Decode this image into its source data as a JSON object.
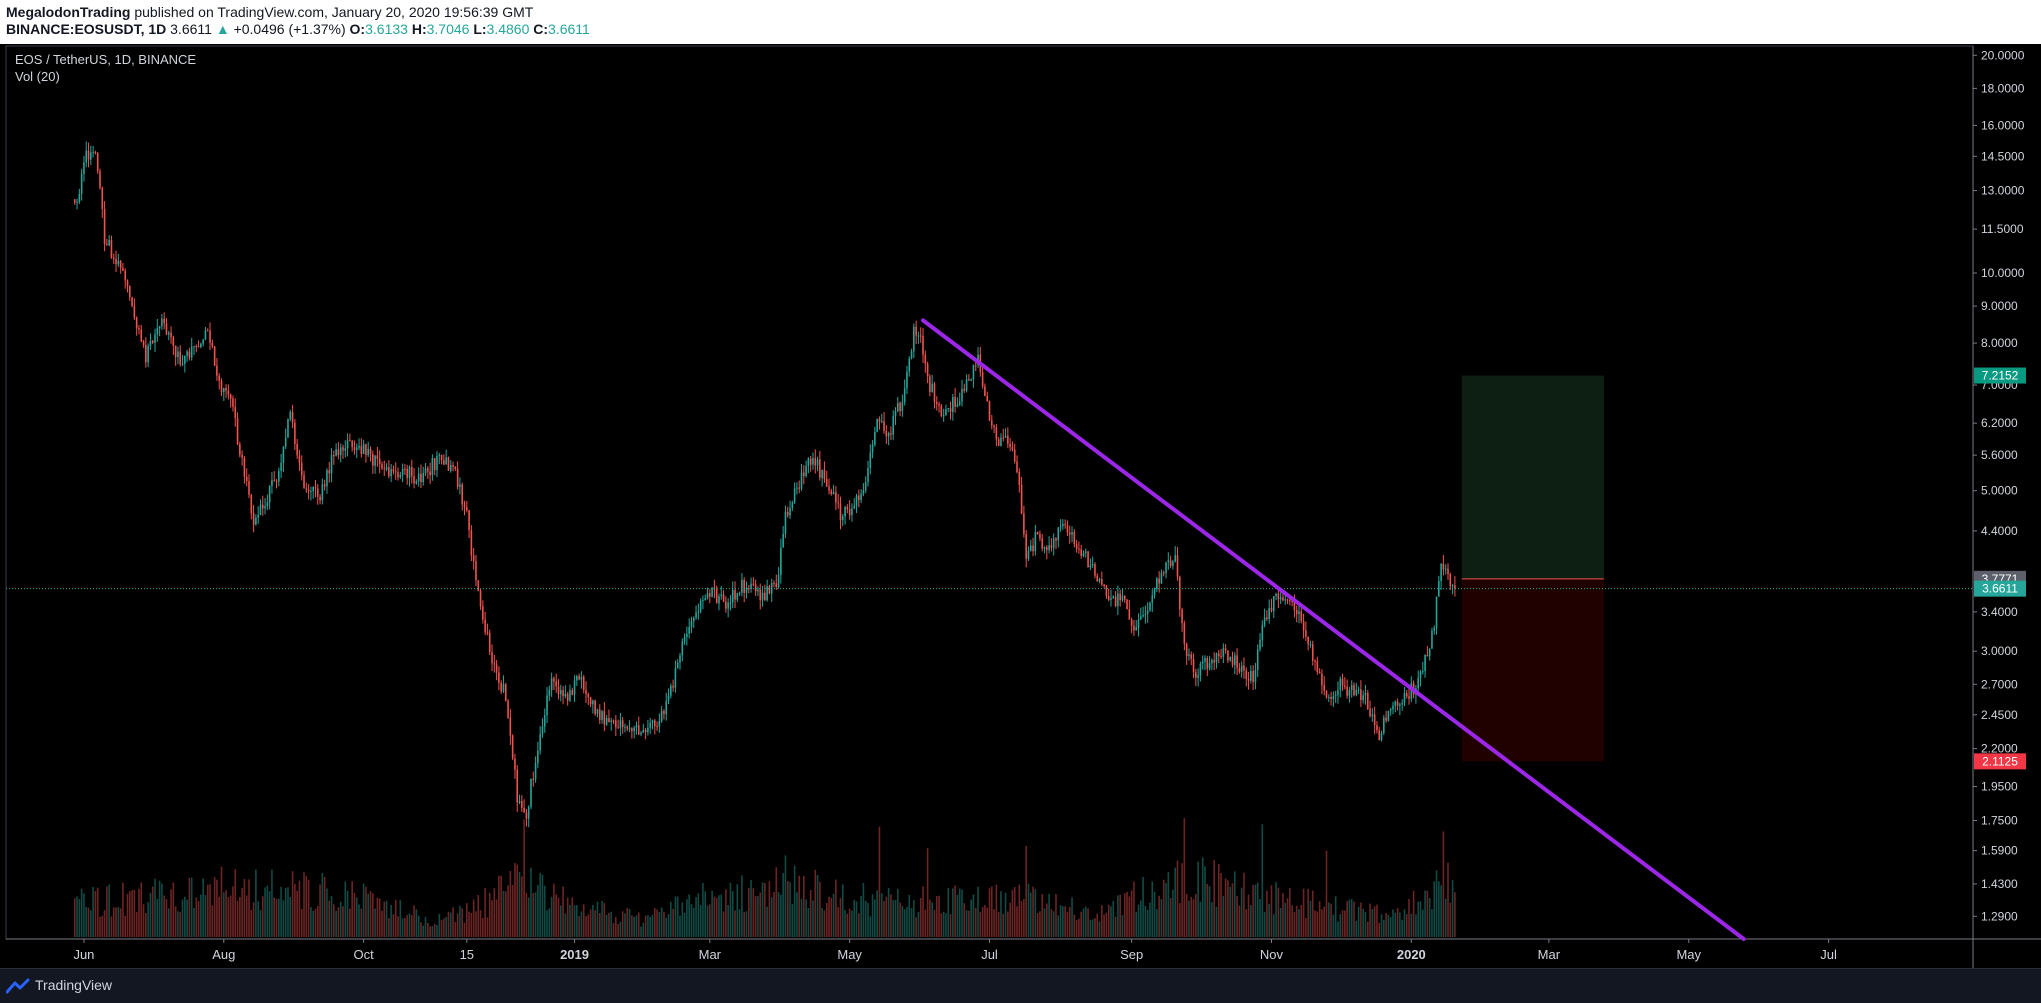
{
  "header": {
    "author": "MegalodonTrading",
    "published_text": "published on TradingView.com, January 20, 2020 19:56:39 GMT",
    "symbol": "BINANCE:EOSUSDT, 1D",
    "last": "3.6611",
    "change": "+0.0496 (+1.37%)",
    "open_label": "O:",
    "open": "3.6133",
    "high_label": "H:",
    "high": "3.7046",
    "low_label": "L:",
    "low": "3.4860",
    "close_label": "C:",
    "close": "3.6611"
  },
  "footer": {
    "brand": "TradingView"
  },
  "colors": {
    "background": "#000000",
    "up": "#26a69a",
    "down": "#ef5350",
    "trendline": "#9c27e8",
    "target_zone": "#0d1f12",
    "stop_zone": "#210000",
    "target_badge": "#089981",
    "stop_badge": "#f23645"
  },
  "chart_data": {
    "type": "candlestick",
    "legend_title": "EOS / TetherUS, 1D, BINANCE",
    "indicator": "Vol (20)",
    "y_scale": "log",
    "ylim": [
      1.2,
      20.6
    ],
    "y_ticks": [
      "20.0000",
      "18.0000",
      "16.0000",
      "14.5000",
      "13.0000",
      "11.5000",
      "10.0000",
      "9.0000",
      "8.0000",
      "7.0000",
      "6.2000",
      "5.6000",
      "5.0000",
      "4.4000",
      "3.4000",
      "3.0000",
      "2.7000",
      "2.4500",
      "2.2000",
      "1.9500",
      "1.7500",
      "1.5900",
      "1.4300",
      "1.2900"
    ],
    "x_range": [
      "2018-04-28",
      "2020-09-02"
    ],
    "x_ticks": [
      {
        "label": "Jun",
        "date": "2018-06-01"
      },
      {
        "label": "Aug",
        "date": "2018-08-01"
      },
      {
        "label": "Oct",
        "date": "2018-10-01"
      },
      {
        "label": "15",
        "date": "2018-11-15"
      },
      {
        "label": "2019",
        "date": "2019-01-01"
      },
      {
        "label": "Mar",
        "date": "2019-03-01"
      },
      {
        "label": "May",
        "date": "2019-05-01"
      },
      {
        "label": "Jul",
        "date": "2019-07-01"
      },
      {
        "label": "Sep",
        "date": "2019-09-01"
      },
      {
        "label": "Nov",
        "date": "2019-11-01"
      },
      {
        "label": "2020",
        "date": "2020-01-01"
      },
      {
        "label": "Mar",
        "date": "2020-03-01"
      },
      {
        "label": "May",
        "date": "2020-05-01"
      },
      {
        "label": "Jul",
        "date": "2020-07-01"
      }
    ],
    "price_path": [
      {
        "date": "2018-05-28",
        "price": 12.3
      },
      {
        "date": "2018-06-02",
        "price": 14.5
      },
      {
        "date": "2018-06-06",
        "price": 15.0
      },
      {
        "date": "2018-06-10",
        "price": 11.2
      },
      {
        "date": "2018-06-14",
        "price": 10.5
      },
      {
        "date": "2018-06-20",
        "price": 9.8
      },
      {
        "date": "2018-06-25",
        "price": 8.2
      },
      {
        "date": "2018-06-28",
        "price": 7.6
      },
      {
        "date": "2018-07-03",
        "price": 8.6
      },
      {
        "date": "2018-07-08",
        "price": 8.2
      },
      {
        "date": "2018-07-14",
        "price": 7.5
      },
      {
        "date": "2018-07-20",
        "price": 8.0
      },
      {
        "date": "2018-07-25",
        "price": 8.4
      },
      {
        "date": "2018-07-30",
        "price": 7.1
      },
      {
        "date": "2018-08-05",
        "price": 6.5
      },
      {
        "date": "2018-08-10",
        "price": 5.2
      },
      {
        "date": "2018-08-14",
        "price": 4.6
      },
      {
        "date": "2018-08-20",
        "price": 4.9
      },
      {
        "date": "2018-08-25",
        "price": 5.3
      },
      {
        "date": "2018-08-30",
        "price": 6.4
      },
      {
        "date": "2018-09-05",
        "price": 5.1
      },
      {
        "date": "2018-09-12",
        "price": 4.9
      },
      {
        "date": "2018-09-18",
        "price": 5.6
      },
      {
        "date": "2018-09-24",
        "price": 5.9
      },
      {
        "date": "2018-10-02",
        "price": 5.7
      },
      {
        "date": "2018-10-10",
        "price": 5.3
      },
      {
        "date": "2018-10-18",
        "price": 5.3
      },
      {
        "date": "2018-10-26",
        "price": 5.2
      },
      {
        "date": "2018-11-04",
        "price": 5.6
      },
      {
        "date": "2018-11-10",
        "price": 5.3
      },
      {
        "date": "2018-11-15",
        "price": 4.6
      },
      {
        "date": "2018-11-20",
        "price": 3.6
      },
      {
        "date": "2018-11-26",
        "price": 2.9
      },
      {
        "date": "2018-12-02",
        "price": 2.6
      },
      {
        "date": "2018-12-07",
        "price": 1.9
      },
      {
        "date": "2018-12-11",
        "price": 1.8
      },
      {
        "date": "2018-12-16",
        "price": 2.2
      },
      {
        "date": "2018-12-21",
        "price": 2.7
      },
      {
        "date": "2018-12-28",
        "price": 2.6
      },
      {
        "date": "2019-01-03",
        "price": 2.75
      },
      {
        "date": "2019-01-10",
        "price": 2.5
      },
      {
        "date": "2019-01-17",
        "price": 2.35
      },
      {
        "date": "2019-01-24",
        "price": 2.4
      },
      {
        "date": "2019-02-01",
        "price": 2.3
      },
      {
        "date": "2019-02-07",
        "price": 2.4
      },
      {
        "date": "2019-02-14",
        "price": 2.8
      },
      {
        "date": "2019-02-20",
        "price": 3.3
      },
      {
        "date": "2019-02-25",
        "price": 3.5
      },
      {
        "date": "2019-03-02",
        "price": 3.6
      },
      {
        "date": "2019-03-08",
        "price": 3.5
      },
      {
        "date": "2019-03-15",
        "price": 3.7
      },
      {
        "date": "2019-03-22",
        "price": 3.6
      },
      {
        "date": "2019-03-30",
        "price": 3.65
      },
      {
        "date": "2019-04-03",
        "price": 4.6
      },
      {
        "date": "2019-04-10",
        "price": 5.2
      },
      {
        "date": "2019-04-15",
        "price": 5.6
      },
      {
        "date": "2019-04-22",
        "price": 5.0
      },
      {
        "date": "2019-04-28",
        "price": 4.6
      },
      {
        "date": "2019-05-03",
        "price": 4.8
      },
      {
        "date": "2019-05-08",
        "price": 5.2
      },
      {
        "date": "2019-05-13",
        "price": 6.2
      },
      {
        "date": "2019-05-18",
        "price": 6.0
      },
      {
        "date": "2019-05-24",
        "price": 6.7
      },
      {
        "date": "2019-05-29",
        "price": 8.3
      },
      {
        "date": "2019-06-01",
        "price": 8.0
      },
      {
        "date": "2019-06-05",
        "price": 7.0
      },
      {
        "date": "2019-06-10",
        "price": 6.4
      },
      {
        "date": "2019-06-15",
        "price": 6.6
      },
      {
        "date": "2019-06-21",
        "price": 7.0
      },
      {
        "date": "2019-06-26",
        "price": 7.6
      },
      {
        "date": "2019-06-30",
        "price": 6.5
      },
      {
        "date": "2019-07-05",
        "price": 5.9
      },
      {
        "date": "2019-07-10",
        "price": 5.8
      },
      {
        "date": "2019-07-14",
        "price": 5.1
      },
      {
        "date": "2019-07-17",
        "price": 4.0
      },
      {
        "date": "2019-07-21",
        "price": 4.3
      },
      {
        "date": "2019-07-27",
        "price": 4.2
      },
      {
        "date": "2019-08-03",
        "price": 4.5
      },
      {
        "date": "2019-08-08",
        "price": 4.2
      },
      {
        "date": "2019-08-15",
        "price": 3.9
      },
      {
        "date": "2019-08-22",
        "price": 3.6
      },
      {
        "date": "2019-08-28",
        "price": 3.5
      },
      {
        "date": "2019-09-03",
        "price": 3.2
      },
      {
        "date": "2019-09-10",
        "price": 3.6
      },
      {
        "date": "2019-09-16",
        "price": 3.9
      },
      {
        "date": "2019-09-20",
        "price": 4.0
      },
      {
        "date": "2019-09-24",
        "price": 3.0
      },
      {
        "date": "2019-09-29",
        "price": 2.8
      },
      {
        "date": "2019-10-06",
        "price": 2.95
      },
      {
        "date": "2019-10-12",
        "price": 3.0
      },
      {
        "date": "2019-10-18",
        "price": 2.85
      },
      {
        "date": "2019-10-24",
        "price": 2.75
      },
      {
        "date": "2019-10-28",
        "price": 3.3
      },
      {
        "date": "2019-11-04",
        "price": 3.6
      },
      {
        "date": "2019-11-09",
        "price": 3.5
      },
      {
        "date": "2019-11-14",
        "price": 3.3
      },
      {
        "date": "2019-11-20",
        "price": 2.9
      },
      {
        "date": "2019-11-25",
        "price": 2.55
      },
      {
        "date": "2019-11-30",
        "price": 2.7
      },
      {
        "date": "2019-12-06",
        "price": 2.65
      },
      {
        "date": "2019-12-12",
        "price": 2.6
      },
      {
        "date": "2019-12-18",
        "price": 2.3
      },
      {
        "date": "2019-12-22",
        "price": 2.5
      },
      {
        "date": "2019-12-28",
        "price": 2.55
      },
      {
        "date": "2020-01-03",
        "price": 2.7
      },
      {
        "date": "2020-01-08",
        "price": 3.0
      },
      {
        "date": "2020-01-11",
        "price": 3.3
      },
      {
        "date": "2020-01-14",
        "price": 3.9
      },
      {
        "date": "2020-01-17",
        "price": 3.8
      },
      {
        "date": "2020-01-20",
        "price": 3.66
      }
    ],
    "current_price": 3.6611,
    "price_labels": {
      "target": 7.2152,
      "entry": 3.7771,
      "current": 3.6611,
      "stop": 2.1125
    },
    "position_box": {
      "start": "2020-01-23",
      "end": "2020-03-25",
      "entry": 3.7771,
      "target": 7.2152,
      "stop": 2.1125
    },
    "trendline": {
      "start": {
        "date": "2019-06-02",
        "price": 8.6
      },
      "end": {
        "date": "2020-05-25",
        "price": 1.2
      }
    },
    "volume": {
      "max": 1.0,
      "profile": [
        {
          "date": "2018-05-28",
          "value": 0.34
        },
        {
          "date": "2018-07-01",
          "value": 0.42
        },
        {
          "date": "2018-08-01",
          "value": 0.5
        },
        {
          "date": "2018-09-01",
          "value": 0.48
        },
        {
          "date": "2018-10-01",
          "value": 0.42
        },
        {
          "date": "2018-11-01",
          "value": 0.16
        },
        {
          "date": "2018-11-20",
          "value": 0.3
        },
        {
          "date": "2018-12-10",
          "value": 0.58
        },
        {
          "date": "2019-01-01",
          "value": 0.3
        },
        {
          "date": "2019-02-01",
          "value": 0.18
        },
        {
          "date": "2019-03-01",
          "value": 0.4
        },
        {
          "date": "2019-04-10",
          "value": 0.52
        },
        {
          "date": "2019-05-15",
          "value": 0.34
        },
        {
          "date": "2019-06-10",
          "value": 0.38
        },
        {
          "date": "2019-07-15",
          "value": 0.42
        },
        {
          "date": "2019-08-15",
          "value": 0.22
        },
        {
          "date": "2019-09-25",
          "value": 0.6
        },
        {
          "date": "2019-10-25",
          "value": 0.45
        },
        {
          "date": "2019-11-25",
          "value": 0.3
        },
        {
          "date": "2019-12-25",
          "value": 0.2
        },
        {
          "date": "2020-01-20",
          "value": 0.62
        }
      ],
      "spikes": [
        {
          "date": "2018-12-10",
          "value": 0.98
        },
        {
          "date": "2019-04-03",
          "value": 0.68
        },
        {
          "date": "2019-05-14",
          "value": 0.92
        },
        {
          "date": "2019-06-04",
          "value": 0.74
        },
        {
          "date": "2019-07-17",
          "value": 0.76
        },
        {
          "date": "2019-09-24",
          "value": 0.99
        },
        {
          "date": "2019-10-28",
          "value": 0.94
        },
        {
          "date": "2019-11-25",
          "value": 0.72
        },
        {
          "date": "2020-01-15",
          "value": 0.88
        }
      ]
    }
  }
}
